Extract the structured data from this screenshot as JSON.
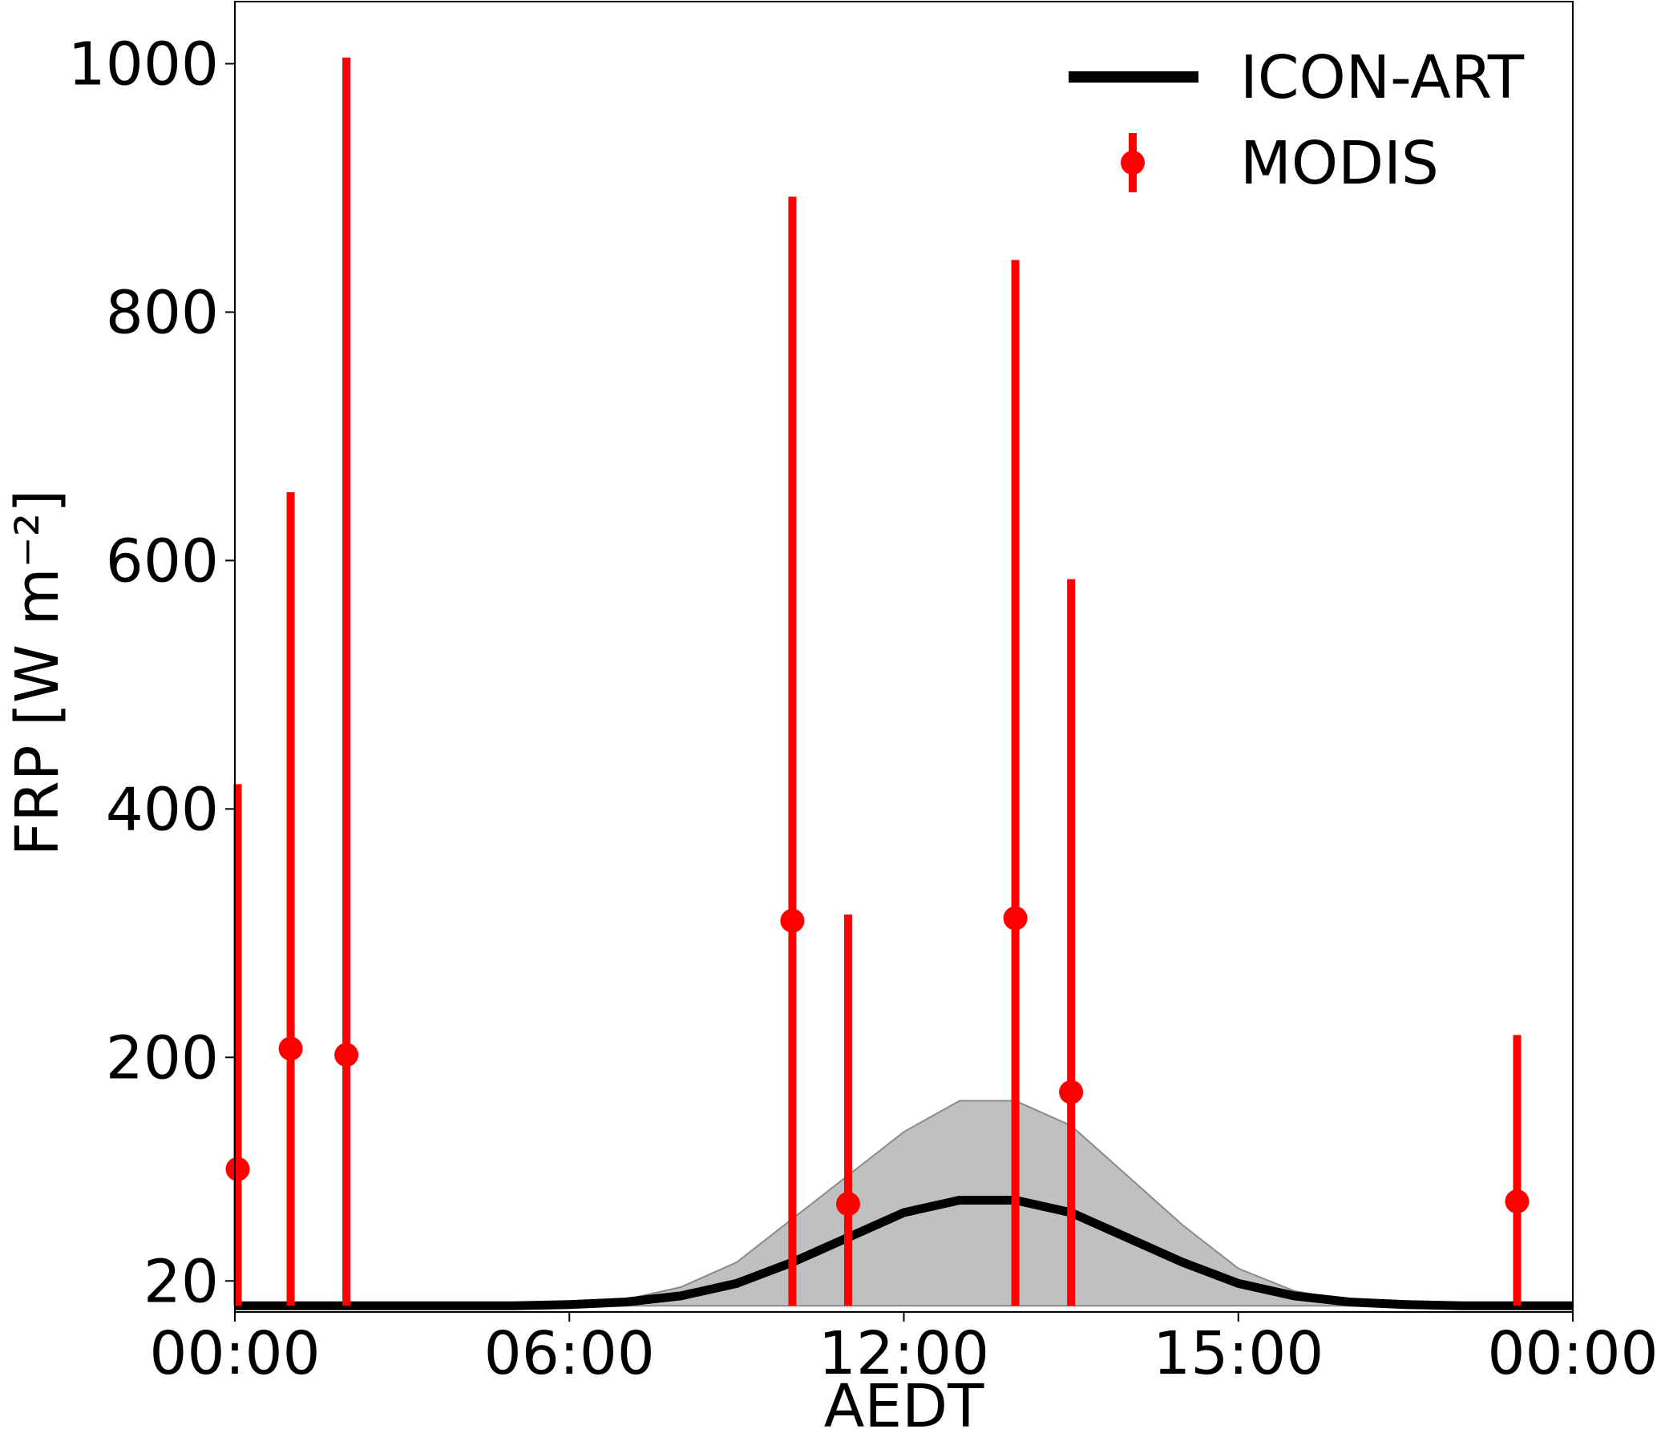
{
  "chart_data": {
    "type": "line",
    "title": "",
    "xlabel": "AEDT",
    "ylabel": "FRP [W m⁻²]",
    "x_ticks": [
      "00:00",
      "06:00",
      "12:00",
      "15:00",
      "00:00"
    ],
    "y_ticks": [
      20,
      200,
      400,
      600,
      800,
      1000
    ],
    "xlim": [
      0,
      24
    ],
    "ylim": [
      -5,
      1050
    ],
    "grid": false,
    "legend_position": "top-right",
    "series": [
      {
        "name": "ICON-ART",
        "kind": "line",
        "color": "#000000",
        "x": [
          0,
          1,
          2,
          3,
          4,
          5,
          6,
          7,
          8,
          9,
          10,
          11,
          12,
          13,
          14,
          15,
          16,
          17,
          18,
          19,
          20,
          21,
          22,
          23,
          24
        ],
        "y": [
          0,
          0,
          0,
          0,
          0,
          0,
          1,
          3,
          8,
          18,
          35,
          55,
          75,
          85,
          85,
          75,
          55,
          35,
          18,
          8,
          3,
          1,
          0,
          0,
          0
        ],
        "band_upper": [
          0,
          0,
          0,
          0,
          0,
          0,
          1,
          5,
          15,
          35,
          70,
          105,
          140,
          165,
          165,
          145,
          105,
          65,
          30,
          12,
          4,
          1,
          0,
          0,
          0
        ],
        "band_lower": [
          0,
          0,
          0,
          0,
          0,
          0,
          0,
          0,
          0,
          0,
          0,
          0,
          0,
          0,
          0,
          0,
          0,
          0,
          0,
          0,
          0,
          0,
          0,
          0,
          0
        ],
        "band_color": "#c0c0c0"
      },
      {
        "name": "MODIS",
        "kind": "errorbar",
        "color": "#ff0000",
        "points": [
          {
            "x": 0.05,
            "y": 110,
            "upper": 420,
            "lower": 0
          },
          {
            "x": 1.0,
            "y": 207,
            "upper": 655,
            "lower": 0
          },
          {
            "x": 2.0,
            "y": 202,
            "upper": 1005,
            "lower": 0
          },
          {
            "x": 10.0,
            "y": 310,
            "upper": 893,
            "lower": 0
          },
          {
            "x": 11.0,
            "y": 82,
            "upper": 315,
            "lower": 0
          },
          {
            "x": 14.0,
            "y": 312,
            "upper": 842,
            "lower": 0
          },
          {
            "x": 15.0,
            "y": 172,
            "upper": 585,
            "lower": 0
          },
          {
            "x": 23.0,
            "y": 84,
            "upper": 218,
            "lower": 0
          }
        ]
      }
    ]
  }
}
